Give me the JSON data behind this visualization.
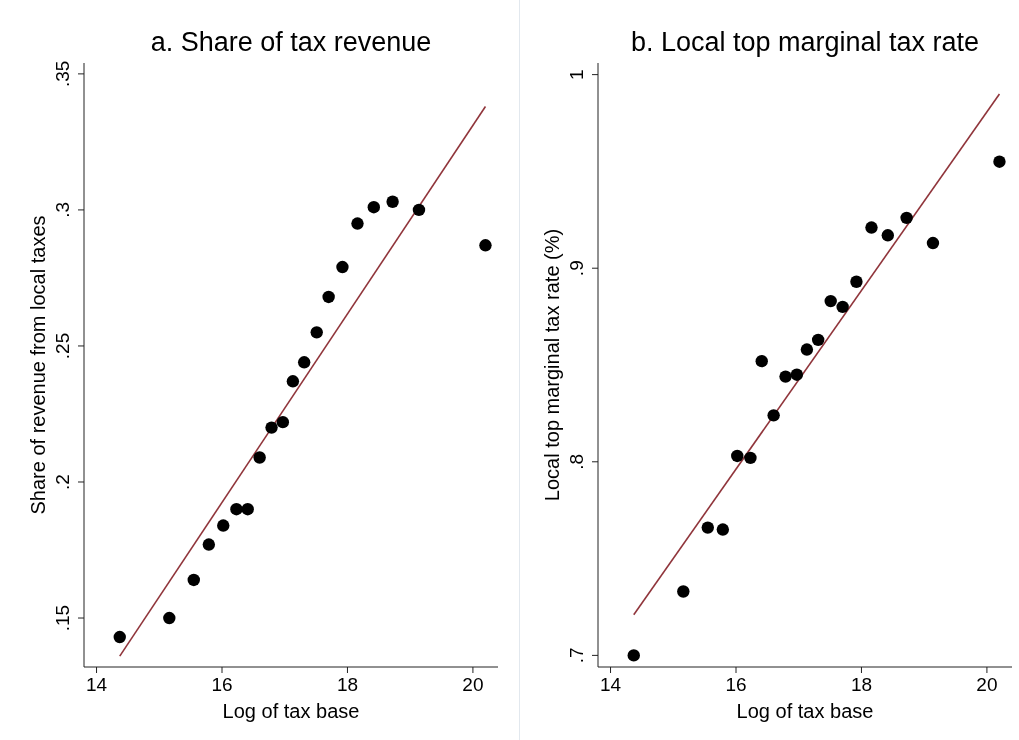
{
  "chart_data": [
    {
      "type": "scatter",
      "title": "a. Share of tax revenue",
      "xlabel": "Log of tax base",
      "ylabel": "Share of revenue from local taxes",
      "xlim": [
        13.8,
        20.4
      ],
      "xticks": [
        14,
        16,
        18,
        20
      ],
      "ylim": [
        0.132,
        0.354
      ],
      "yticks": [
        {
          "value": 0.15,
          "label": ".15"
        },
        {
          "value": 0.2,
          "label": ".2"
        },
        {
          "value": 0.25,
          "label": ".25"
        },
        {
          "value": 0.3,
          "label": ".3"
        },
        {
          "value": 0.35,
          "label": ".35"
        }
      ],
      "series": [
        {
          "color": "#000000",
          "marker": "circle",
          "x": [
            14.37,
            15.16,
            15.55,
            15.79,
            16.02,
            16.23,
            16.41,
            16.6,
            16.79,
            16.97,
            17.13,
            17.31,
            17.51,
            17.7,
            17.92,
            18.16,
            18.42,
            18.72,
            19.14,
            20.2
          ],
          "values": [
            0.143,
            0.15,
            0.164,
            0.177,
            0.184,
            0.19,
            0.19,
            0.209,
            0.22,
            0.222,
            0.237,
            0.244,
            0.255,
            0.268,
            0.279,
            0.295,
            0.301,
            0.303,
            0.3,
            0.287
          ]
        },
        {
          "type": "line",
          "color": "#90353b",
          "x": [
            14.37,
            20.2
          ],
          "values": [
            0.136,
            0.338
          ]
        }
      ]
    },
    {
      "type": "scatter",
      "title": "b. Local top marginal tax rate",
      "xlabel": "Log of tax base",
      "ylabel": "Local top marginal tax rate (%)",
      "xlim": [
        13.8,
        20.4
      ],
      "xticks": [
        14,
        16,
        18,
        20
      ],
      "ylim": [
        0.694,
        1.006
      ],
      "yticks": [
        {
          "value": 0.7,
          "label": ".7"
        },
        {
          "value": 0.8,
          "label": ".8"
        },
        {
          "value": 0.9,
          "label": ".9"
        },
        1
      ],
      "series": [
        {
          "color": "#000000",
          "marker": "circle",
          "x": [
            14.37,
            15.16,
            15.55,
            15.79,
            16.02,
            16.23,
            16.41,
            16.6,
            16.79,
            16.97,
            17.13,
            17.31,
            17.51,
            17.7,
            17.92,
            18.16,
            18.42,
            18.72,
            19.14,
            20.2
          ],
          "values": [
            0.7,
            0.733,
            0.766,
            0.765,
            0.803,
            0.802,
            0.852,
            0.824,
            0.844,
            0.845,
            0.858,
            0.863,
            0.883,
            0.88,
            0.893,
            0.921,
            0.917,
            0.926,
            0.913,
            0.955
          ]
        },
        {
          "type": "line",
          "color": "#90353b",
          "x": [
            14.37,
            20.2
          ],
          "values": [
            0.721,
            0.99
          ]
        }
      ]
    }
  ]
}
